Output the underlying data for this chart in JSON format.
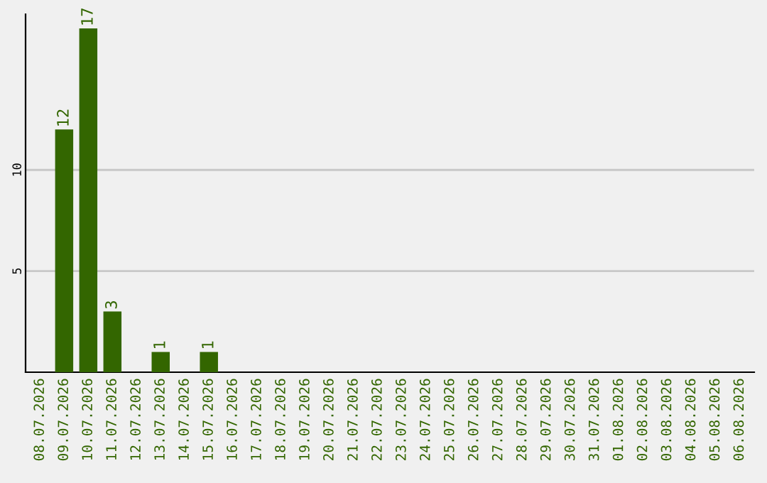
{
  "chart_data": {
    "type": "bar",
    "categories": [
      "08.07.2026",
      "09.07.2026",
      "10.07.2026",
      "11.07.2026",
      "12.07.2026",
      "13.07.2026",
      "14.07.2026",
      "15.07.2026",
      "16.07.2026",
      "17.07.2026",
      "18.07.2026",
      "19.07.2026",
      "20.07.2026",
      "21.07.2026",
      "22.07.2026",
      "23.07.2026",
      "24.07.2026",
      "25.07.2026",
      "26.07.2026",
      "27.07.2026",
      "28.07.2026",
      "29.07.2026",
      "30.07.2026",
      "31.07.2026",
      "01.08.2026",
      "02.08.2026",
      "03.08.2026",
      "04.08.2026",
      "05.08.2026",
      "06.08.2026"
    ],
    "values": [
      0,
      12,
      17,
      3,
      0,
      1,
      0,
      1,
      0,
      0,
      0,
      0,
      0,
      0,
      0,
      0,
      0,
      0,
      0,
      0,
      0,
      0,
      0,
      0,
      0,
      0,
      0,
      0,
      0,
      0
    ],
    "value_labels": [
      null,
      "12",
      "17",
      "3",
      null,
      "1",
      null,
      "1",
      null,
      null,
      null,
      null,
      null,
      null,
      null,
      null,
      null,
      null,
      null,
      null,
      null,
      null,
      null,
      null,
      null,
      null,
      null,
      null,
      null,
      null
    ],
    "color": "#336600",
    "ylim": [
      0,
      17.7
    ],
    "yticks": [
      5,
      10
    ],
    "grid": "y",
    "legend": false
  }
}
